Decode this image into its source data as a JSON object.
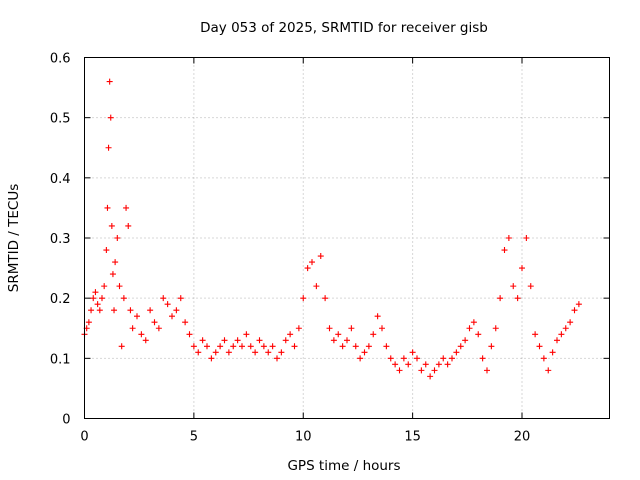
{
  "chart_data": {
    "type": "scatter",
    "title": "Day 053 of 2025, SRMTID for receiver gisb",
    "xlabel": "GPS time / hours",
    "ylabel": "SRMTID / TECUs",
    "xlim": [
      0,
      24
    ],
    "ylim": [
      0,
      0.6
    ],
    "xticks": [
      0,
      5,
      10,
      15,
      20
    ],
    "xtick_labels": [
      "0",
      "5",
      "10",
      "15",
      "20"
    ],
    "yticks": [
      0,
      0.1,
      0.2,
      0.3,
      0.4,
      0.5,
      0.6
    ],
    "ytick_labels": [
      "0",
      "0.1",
      "0.2",
      "0.3",
      "0.4",
      "0.5",
      "0.6"
    ],
    "grid": true,
    "marker": "plus",
    "color": "#ff0000",
    "series": [
      {
        "name": "SRMTID",
        "x": [
          0.0,
          0.1,
          0.2,
          0.3,
          0.4,
          0.5,
          0.6,
          0.7,
          0.8,
          0.9,
          1.0,
          1.05,
          1.1,
          1.15,
          1.2,
          1.25,
          1.3,
          1.35,
          1.4,
          1.5,
          1.6,
          1.7,
          1.8,
          1.9,
          2.0,
          2.1,
          2.2,
          2.4,
          2.6,
          2.8,
          3.0,
          3.2,
          3.4,
          3.6,
          3.8,
          4.0,
          4.2,
          4.4,
          4.6,
          4.8,
          5.0,
          5.2,
          5.4,
          5.6,
          5.8,
          6.0,
          6.2,
          6.4,
          6.6,
          6.8,
          7.0,
          7.2,
          7.4,
          7.6,
          7.8,
          8.0,
          8.2,
          8.4,
          8.6,
          8.8,
          9.0,
          9.2,
          9.4,
          9.6,
          9.8,
          10.0,
          10.2,
          10.4,
          10.6,
          10.8,
          11.0,
          11.2,
          11.4,
          11.6,
          11.8,
          12.0,
          12.2,
          12.4,
          12.6,
          12.8,
          13.0,
          13.2,
          13.4,
          13.6,
          13.8,
          14.0,
          14.2,
          14.4,
          14.6,
          14.8,
          15.0,
          15.2,
          15.4,
          15.6,
          15.8,
          16.0,
          16.2,
          16.4,
          16.6,
          16.8,
          17.0,
          17.2,
          17.4,
          17.6,
          17.8,
          18.0,
          18.2,
          18.4,
          18.6,
          18.8,
          19.0,
          19.2,
          19.4,
          19.6,
          19.8,
          20.0,
          20.2,
          20.4,
          20.6,
          20.8,
          21.0,
          21.2,
          21.4,
          21.6,
          21.8,
          22.0,
          22.2,
          22.4,
          22.6
        ],
        "y": [
          0.14,
          0.15,
          0.16,
          0.18,
          0.2,
          0.21,
          0.19,
          0.18,
          0.2,
          0.22,
          0.28,
          0.35,
          0.45,
          0.56,
          0.5,
          0.32,
          0.24,
          0.18,
          0.26,
          0.3,
          0.22,
          0.12,
          0.2,
          0.35,
          0.32,
          0.18,
          0.15,
          0.17,
          0.14,
          0.13,
          0.18,
          0.16,
          0.15,
          0.2,
          0.19,
          0.17,
          0.18,
          0.2,
          0.16,
          0.14,
          0.12,
          0.11,
          0.13,
          0.12,
          0.1,
          0.11,
          0.12,
          0.13,
          0.11,
          0.12,
          0.13,
          0.12,
          0.14,
          0.12,
          0.11,
          0.13,
          0.12,
          0.11,
          0.12,
          0.1,
          0.11,
          0.13,
          0.14,
          0.12,
          0.15,
          0.2,
          0.25,
          0.26,
          0.22,
          0.27,
          0.2,
          0.15,
          0.13,
          0.14,
          0.12,
          0.13,
          0.15,
          0.12,
          0.1,
          0.11,
          0.12,
          0.14,
          0.17,
          0.15,
          0.12,
          0.1,
          0.09,
          0.08,
          0.1,
          0.09,
          0.11,
          0.1,
          0.08,
          0.09,
          0.07,
          0.08,
          0.09,
          0.1,
          0.09,
          0.1,
          0.11,
          0.12,
          0.13,
          0.15,
          0.16,
          0.14,
          0.1,
          0.08,
          0.12,
          0.15,
          0.2,
          0.28,
          0.3,
          0.22,
          0.2,
          0.25,
          0.3,
          0.22,
          0.14,
          0.12,
          0.1,
          0.08,
          0.11,
          0.13,
          0.14,
          0.15,
          0.16,
          0.18,
          0.19
        ]
      }
    ]
  }
}
